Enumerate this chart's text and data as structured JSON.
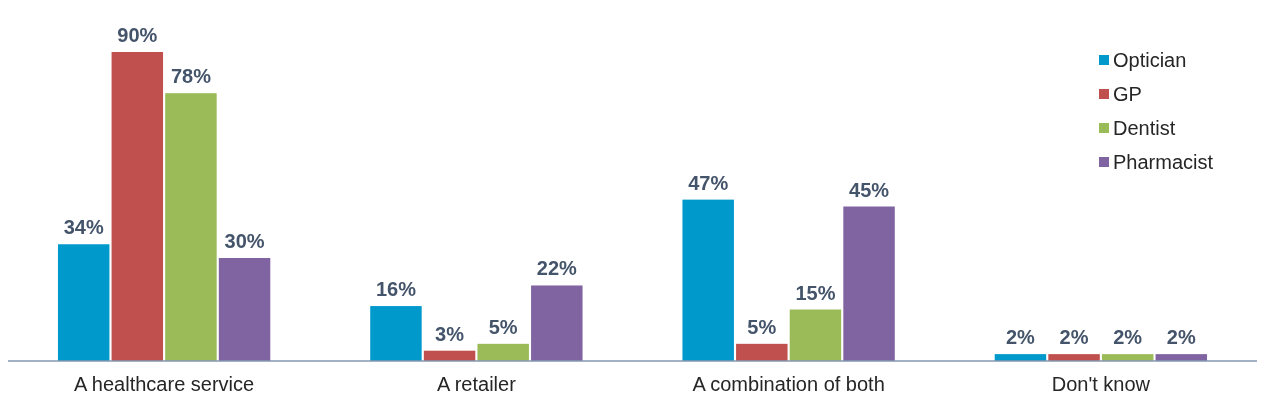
{
  "chart_data": {
    "type": "bar",
    "categories": [
      "A healthcare service",
      "A retailer",
      "A combination of both",
      "Don't know"
    ],
    "series": [
      {
        "name": "Optician",
        "color": "#0099cc",
        "values": [
          34,
          16,
          47,
          2
        ],
        "value_labels": [
          "34%",
          "16%",
          "47%",
          "2%"
        ]
      },
      {
        "name": "GP",
        "color": "#c0504d",
        "values": [
          90,
          3,
          5,
          2
        ],
        "value_labels": [
          "90%",
          "3%",
          "5%",
          "2%"
        ]
      },
      {
        "name": "Dentist",
        "color": "#9bbb59",
        "values": [
          78,
          5,
          15,
          2
        ],
        "value_labels": [
          "78%",
          "5%",
          "15%",
          "2%"
        ]
      },
      {
        "name": "Pharmacist",
        "color": "#8064a2",
        "values": [
          30,
          22,
          45,
          2
        ],
        "value_labels": [
          "30%",
          "22%",
          "45%",
          "2%"
        ]
      }
    ],
    "legend": "top right",
    "marker": "square"
  }
}
